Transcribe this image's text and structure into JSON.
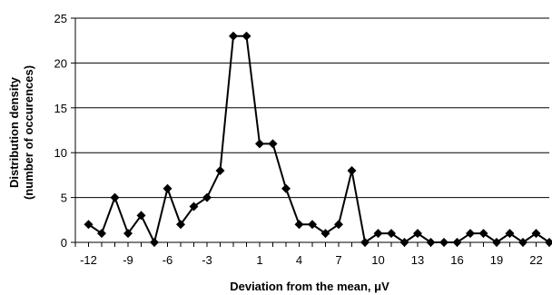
{
  "chart_data": {
    "type": "line",
    "title": "",
    "xlabel": "Deviation from the mean, μV",
    "ylabel_lines": [
      "Distribution  density",
      "(number of occurences)"
    ],
    "ylim": [
      0,
      25
    ],
    "yticks": [
      0,
      5,
      10,
      15,
      20,
      25
    ],
    "xlim": [
      -13,
      23
    ],
    "xticks": [
      -12,
      -9,
      -6,
      -3,
      1,
      4,
      7,
      10,
      13,
      16,
      19,
      22
    ],
    "xtick_labels": [
      "-12",
      "-9",
      "-6",
      "-3",
      "1",
      "4",
      "7",
      "10",
      "13",
      "16",
      "19",
      "22"
    ],
    "grid": "horizontal",
    "marker": "diamond",
    "series": [
      {
        "x": [
          -12,
          -11,
          -10,
          -9,
          -8,
          -7,
          -6,
          -5,
          -4,
          -3,
          -2,
          -1,
          0,
          1,
          2,
          3,
          4,
          5,
          6,
          7,
          8,
          9,
          10,
          11,
          12,
          13,
          14,
          15,
          16,
          17,
          18,
          19,
          20,
          21,
          22,
          23
        ],
        "values": [
          2,
          1,
          5,
          1,
          3,
          0,
          6,
          2,
          4,
          5,
          8,
          23,
          23,
          11,
          11,
          6,
          2,
          2,
          1,
          2,
          8,
          0,
          1,
          1,
          0,
          1,
          0,
          0,
          0,
          1,
          1,
          0,
          1,
          0,
          1,
          0
        ]
      }
    ],
    "colors": {
      "line": "#000000",
      "marker": "#000000",
      "grid": "#000000"
    }
  }
}
